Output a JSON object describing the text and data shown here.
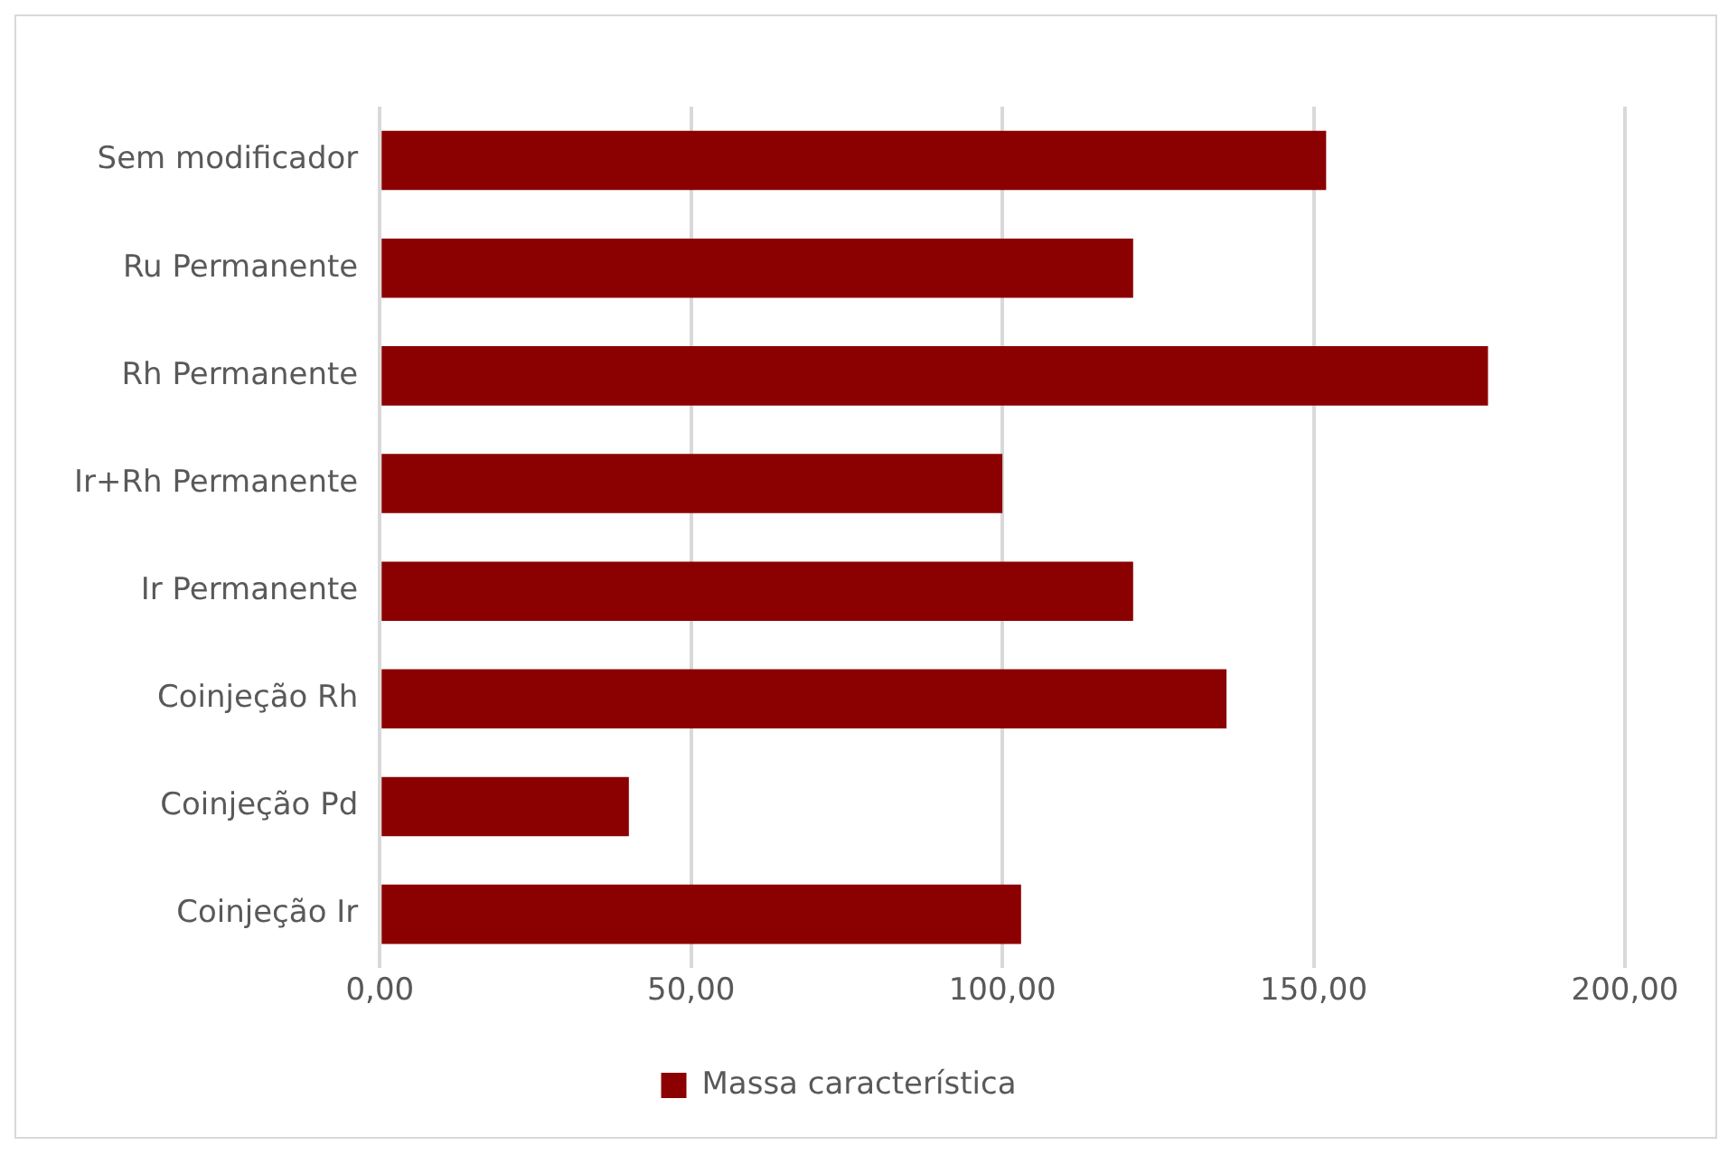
{
  "chart_data": {
    "type": "bar",
    "orientation": "horizontal",
    "categories": [
      "Sem modificador",
      "Ru Permanente",
      "Rh Permanente",
      "Ir+Rh Permanente",
      "Ir Permanente",
      "Coinjeção Rh",
      "Coinjeção Pd",
      "Coinjeção Ir"
    ],
    "series": [
      {
        "name": "Massa característica",
        "color": "#8b0000",
        "values": [
          152,
          121,
          178,
          100,
          121,
          136,
          40,
          103
        ]
      }
    ],
    "xlim": [
      0,
      200
    ],
    "xticks": [
      {
        "value": 0,
        "label": "0,00"
      },
      {
        "value": 50,
        "label": "50,00"
      },
      {
        "value": 100,
        "label": "100,00"
      },
      {
        "value": 150,
        "label": "150,00"
      },
      {
        "value": 200,
        "label": "200,00"
      }
    ],
    "grid": "x",
    "legend": "bottom"
  }
}
